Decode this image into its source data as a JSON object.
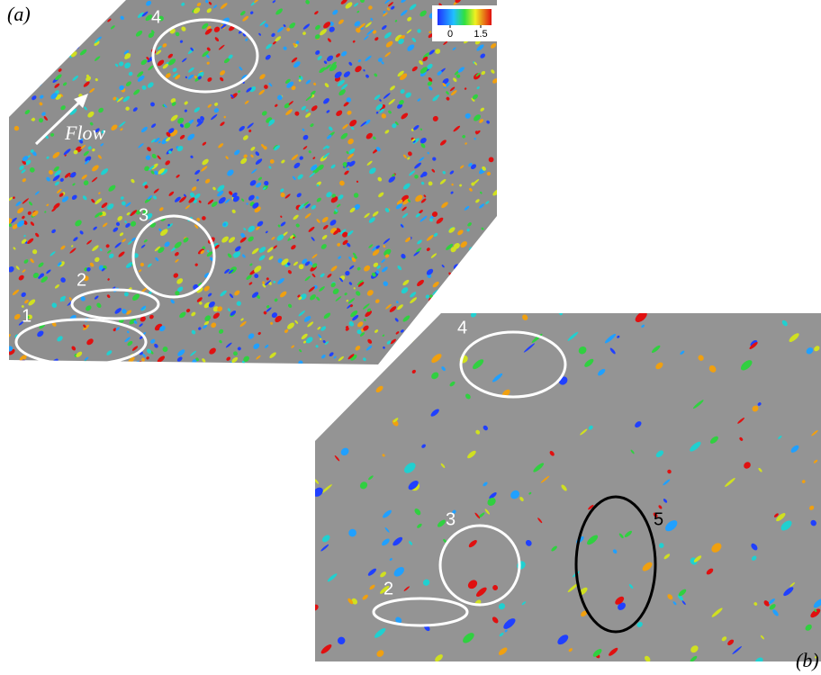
{
  "panel_a": {
    "label": "(a)",
    "flow_label": "Flow",
    "regions": [
      {
        "label": "1"
      },
      {
        "label": "2"
      },
      {
        "label": "3"
      },
      {
        "label": "4"
      }
    ]
  },
  "panel_b": {
    "label": "(b)",
    "regions": [
      {
        "label": "2"
      },
      {
        "label": "3"
      },
      {
        "label": "4"
      },
      {
        "label": "5"
      }
    ]
  },
  "colorbar": {
    "lim": [
      0,
      1.5
    ],
    "ticks": [
      0,
      1.5
    ]
  }
}
